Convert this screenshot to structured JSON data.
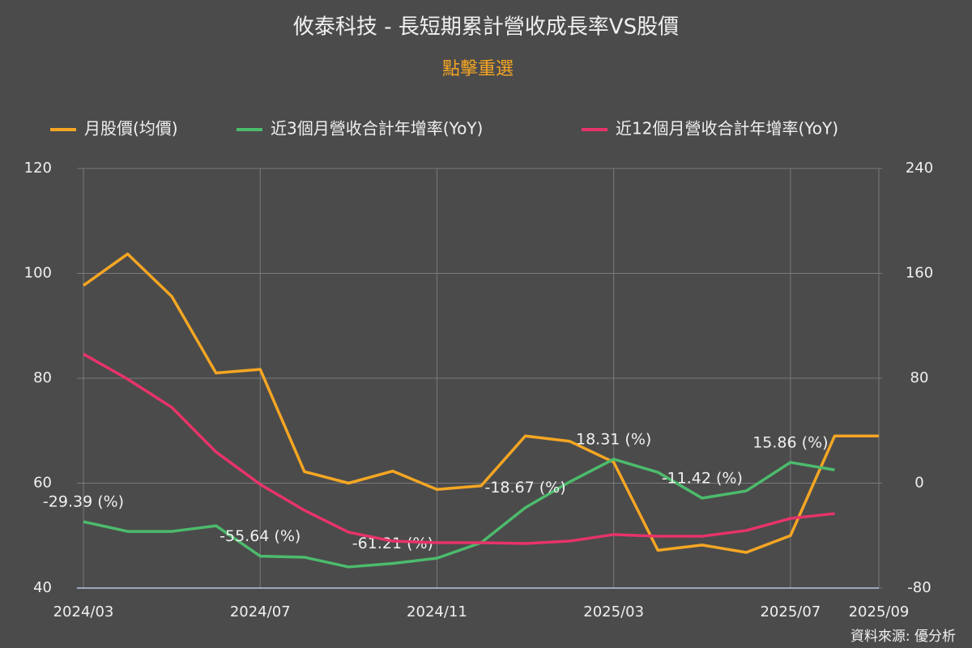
{
  "chart_data": {
    "type": "line",
    "title": "攸泰科技 - 長短期累計營收成長率VS股價",
    "subtitle": "點擊重選",
    "source": "資料來源: 優分析",
    "x": [
      "2024/03",
      "2024/04",
      "2024/05",
      "2024/06",
      "2024/07",
      "2024/08",
      "2024/09",
      "2024/10",
      "2024/11",
      "2024/12",
      "2025/01",
      "2025/02",
      "2025/03",
      "2025/04",
      "2025/05",
      "2025/06",
      "2025/07",
      "2025/08",
      "2025/09"
    ],
    "xticks": [
      "2024/03",
      "2024/07",
      "2024/11",
      "2025/03",
      "2025/07",
      "2025/09"
    ],
    "ylim": [
      40,
      120
    ],
    "yticks": [
      40,
      60,
      80,
      100,
      120
    ],
    "y2lim": [
      -80,
      240
    ],
    "y2ticks": [
      -80,
      0,
      80,
      160,
      240
    ],
    "grid": true,
    "legend": "top",
    "series": [
      {
        "name": "月股價(均價)",
        "color": "#f5a623",
        "axis": "y",
        "values": [
          97.7,
          103.7,
          95.6,
          81,
          81.7,
          62.2,
          60,
          62.3,
          58.8,
          59.5,
          69,
          68,
          64,
          47.2,
          48.2,
          46.8,
          50,
          69,
          69
        ]
      },
      {
        "name": "近3個月營收合計年增率(YoY)",
        "color": "#4cbb6c",
        "axis": "y2",
        "values": [
          -29.39,
          -36.8,
          -36.8,
          -32.5,
          -55.64,
          -56.5,
          -63.9,
          -61.21,
          -57.2,
          -45.4,
          -18.67,
          0.9,
          18.31,
          8.3,
          -11.42,
          -5.9,
          15.86,
          10.1,
          null
        ],
        "value_labels": [
          "-29.39 (%)",
          null,
          null,
          null,
          "-55.64 (%)",
          null,
          null,
          "-61.21 (%)",
          null,
          null,
          "-18.67 (%)",
          null,
          "18.31 (%)",
          null,
          "-11.42 (%)",
          null,
          "15.86 (%)",
          null,
          null
        ]
      },
      {
        "name": "近12個月營收合計年增率(YoY)",
        "color": "#e8336a",
        "axis": "y2",
        "values": [
          98.5,
          79.4,
          57.8,
          23.8,
          -0.9,
          -20.7,
          -37.4,
          -44.2,
          -45.4,
          -45.4,
          -46,
          -44.2,
          -39.2,
          -40.5,
          -40.5,
          -36.1,
          -26.9,
          -23.2,
          null
        ]
      }
    ]
  }
}
